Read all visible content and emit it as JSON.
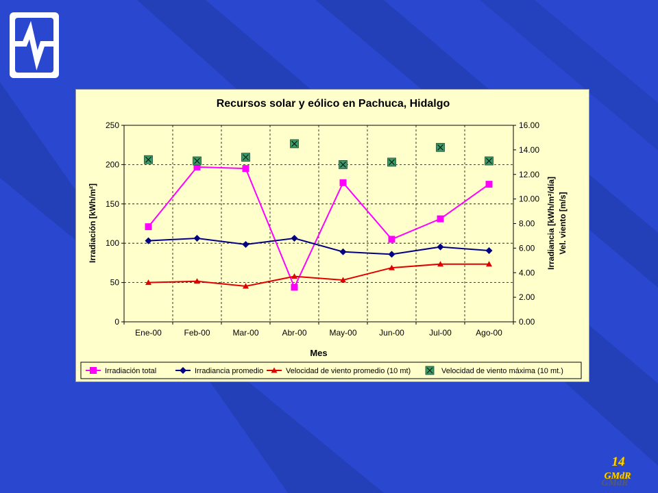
{
  "slide": {
    "number": "14",
    "brand": "GMdR"
  },
  "colors": {
    "background": "#2a48cf",
    "stripe": "#2340b8",
    "chart_bg": "#ffffcc",
    "series_irradiacion_total": "#ff00ff",
    "series_irradiancia_promedio": "#000080",
    "series_viento_promedio": "#e00000",
    "series_viento_maxima": "#3a9a6a"
  },
  "chart_data": {
    "type": "line",
    "title": "Recursos solar y eólico en Pachuca, Hidalgo",
    "xlabel": "Mes",
    "ylabel_left": "Irradiación [kWh/m²]",
    "ylabel_right_1": "Irradiancia [kWh/m²/día]",
    "ylabel_right_2": "Vel. viento [m/s]",
    "categories": [
      "Ene-00",
      "Feb-00",
      "Mar-00",
      "Abr-00",
      "May-00",
      "Jun-00",
      "Jul-00",
      "Ago-00"
    ],
    "ylim_left": [
      0,
      250
    ],
    "yticks_left": [
      "0",
      "50",
      "100",
      "150",
      "200",
      "250"
    ],
    "ylim_right": [
      0,
      16
    ],
    "yticks_right": [
      "0.00",
      "2.00",
      "4.00",
      "6.00",
      "8.00",
      "10.00",
      "12.00",
      "14.00",
      "16.00"
    ],
    "grid": true,
    "legend_position": "bottom",
    "series": [
      {
        "name": "Irradiación total",
        "axis": "left",
        "marker": "square",
        "line": true,
        "values": [
          121,
          197,
          195,
          44,
          177,
          105,
          131,
          175
        ]
      },
      {
        "name": "Irradiancia promedio",
        "axis": "right",
        "marker": "diamond",
        "line": true,
        "values": [
          6.6,
          6.8,
          6.3,
          6.8,
          5.7,
          5.5,
          6.1,
          5.8
        ]
      },
      {
        "name": "Velocidad de viento promedio (10 mt)",
        "axis": "right",
        "marker": "triangle",
        "line": true,
        "values": [
          3.2,
          3.3,
          2.9,
          3.7,
          3.4,
          4.4,
          4.7,
          4.7
        ]
      },
      {
        "name": "Velocidad de viento máxima (10 mt.)",
        "axis": "right",
        "marker": "xbox",
        "line": false,
        "values": [
          13.2,
          13.1,
          13.4,
          14.5,
          12.8,
          13.0,
          14.2,
          13.1
        ]
      }
    ]
  }
}
